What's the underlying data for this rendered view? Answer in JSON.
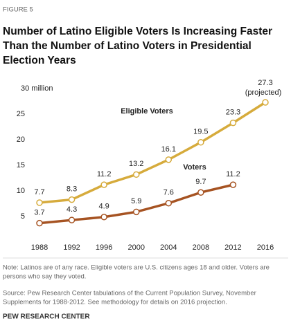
{
  "figure_label": "FIGURE 5",
  "chart_data": {
    "type": "line",
    "title": [
      "Number of Latino Eligible Voters Is Increasing Faster",
      "Than the Number of Latino Voters in Presidential",
      "Election Years"
    ],
    "x": [
      1988,
      1992,
      1996,
      2000,
      2004,
      2008,
      2012,
      2016
    ],
    "xlim": [
      1988,
      2016
    ],
    "xticks": [
      1988,
      1992,
      1996,
      2000,
      2004,
      2008,
      2012,
      2016
    ],
    "ylim": [
      0,
      30
    ],
    "yticks": [
      5,
      10,
      15,
      20,
      25,
      {
        "value": 30,
        "label": "30 million"
      }
    ],
    "grid": false,
    "series": [
      {
        "name": "Eligible Voters",
        "color": "#d6ab3c",
        "values": [
          7.7,
          8.3,
          11.2,
          13.2,
          16.1,
          19.5,
          23.3,
          27.3
        ]
      },
      {
        "name": "Voters",
        "color": "#a65322",
        "values": [
          3.7,
          4.3,
          4.9,
          5.9,
          7.6,
          9.7,
          11.2,
          null
        ]
      }
    ],
    "annotations": [
      "(projected)"
    ]
  },
  "note": [
    "Note: Latinos are of any race. Eligible voters are U.S. citizens ages 18 and older. Voters are",
    "persons who say they voted."
  ],
  "source": [
    "Source: Pew Research Center tabulations of the Current Population Survey, November",
    "Supplements for 1988-2012. See methodology for details on 2016 projection."
  ],
  "footer": "PEW RESEARCH CENTER"
}
